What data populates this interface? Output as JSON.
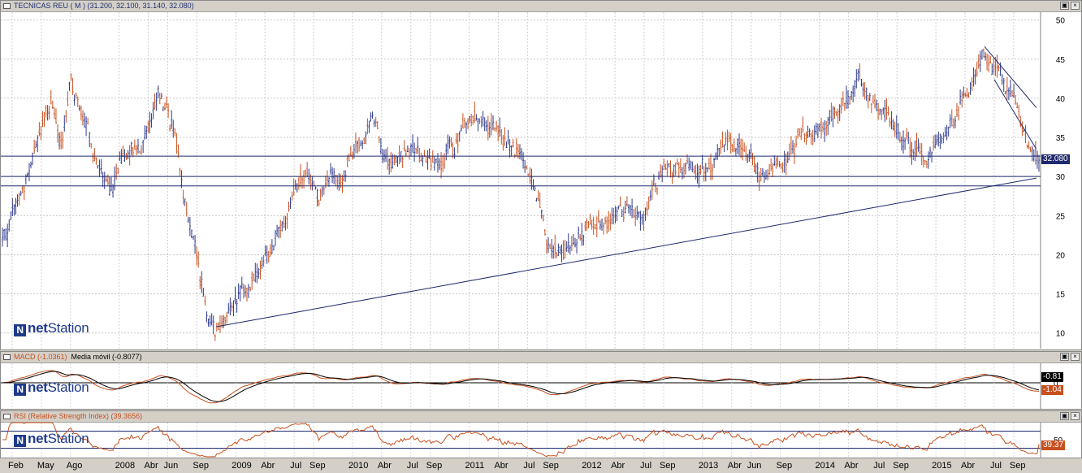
{
  "price_pane": {
    "header": "TECNICAS REU ( M ) (31.200, 32.100, 31.140, 32.080)",
    "last_price_label": "32.080",
    "brand": {
      "prefix": "net",
      "suffix": "Station"
    }
  },
  "macd_pane": {
    "header_macd": "MACD (-1.0361)",
    "header_signal": "Media móvil (-0.8077)",
    "signal_label": "-0.81",
    "macd_label": "-1.04",
    "brand": {
      "prefix": "net",
      "suffix": "Station"
    }
  },
  "rsi_pane": {
    "header": "RSI (Relative Strength Index) (39.3656)",
    "rsi_label": "39.37",
    "brand": {
      "prefix": "net",
      "suffix": "Station"
    }
  },
  "window_buttons": [
    "▣",
    "×"
  ],
  "colors": {
    "up": "#2e3a8c",
    "down": "#c8501e",
    "trendline": "#1f2a6e",
    "macd": "#c8501e",
    "signal": "#000000",
    "rsi": "#c8501e"
  },
  "chart_data": [
    {
      "type": "bar",
      "subtype": "ohlc",
      "title": "TECNICAS REU ( M ) (31.200, 32.100, 31.140, 32.080)",
      "ylim": [
        8,
        51
      ],
      "yticks": [
        10,
        15,
        20,
        25,
        30,
        35,
        40,
        45,
        50
      ],
      "grid": true,
      "x_labels": [
        "Feb",
        "May",
        "Ago",
        "2008",
        "Abr",
        "Jun",
        "Sep",
        "2009",
        "Abr",
        "Jul",
        "Sep",
        "2010",
        "Abr",
        "Jul",
        "Sep",
        "2011",
        "Abr",
        "Jul",
        "Sep",
        "2012",
        "Abr",
        "Jul",
        "Sep",
        "2013",
        "Abr",
        "Jun",
        "Sep",
        "2014",
        "Abr",
        "Jul",
        "Sep",
        "2015",
        "Abr",
        "Jul",
        "Sep"
      ],
      "key_points": [
        {
          "date": "2007-01",
          "close": 22
        },
        {
          "date": "2007-03",
          "close": 28
        },
        {
          "date": "2007-05",
          "close": 36
        },
        {
          "date": "2007-06",
          "close": 39
        },
        {
          "date": "2007-07",
          "close": 33
        },
        {
          "date": "2007-08",
          "close": 43
        },
        {
          "date": "2007-09",
          "close": 38
        },
        {
          "date": "2007-10",
          "close": 34
        },
        {
          "date": "2007-12",
          "close": 28
        },
        {
          "date": "2008-02",
          "close": 33
        },
        {
          "date": "2008-04",
          "close": 36
        },
        {
          "date": "2008-05",
          "close": 41
        },
        {
          "date": "2008-06",
          "close": 38
        },
        {
          "date": "2008-07",
          "close": 34
        },
        {
          "date": "2008-08",
          "close": 26
        },
        {
          "date": "2008-09",
          "close": 20
        },
        {
          "date": "2008-10",
          "close": 13
        },
        {
          "date": "2008-11",
          "close": 11
        },
        {
          "date": "2008-12",
          "close": 13
        },
        {
          "date": "2009-02",
          "close": 15
        },
        {
          "date": "2009-04",
          "close": 20
        },
        {
          "date": "2009-06",
          "close": 25
        },
        {
          "date": "2009-08",
          "close": 30
        },
        {
          "date": "2009-10",
          "close": 28
        },
        {
          "date": "2009-12",
          "close": 30
        },
        {
          "date": "2010-02",
          "close": 35
        },
        {
          "date": "2010-03",
          "close": 37
        },
        {
          "date": "2010-05",
          "close": 31
        },
        {
          "date": "2010-07",
          "close": 33
        },
        {
          "date": "2010-09",
          "close": 31
        },
        {
          "date": "2010-11",
          "close": 33
        },
        {
          "date": "2011-01",
          "close": 37
        },
        {
          "date": "2011-02",
          "close": 38
        },
        {
          "date": "2011-04",
          "close": 35
        },
        {
          "date": "2011-06",
          "close": 33
        },
        {
          "date": "2011-08",
          "close": 27
        },
        {
          "date": "2011-09",
          "close": 21
        },
        {
          "date": "2011-11",
          "close": 20
        },
        {
          "date": "2012-01",
          "close": 23
        },
        {
          "date": "2012-03",
          "close": 24
        },
        {
          "date": "2012-05",
          "close": 26
        },
        {
          "date": "2012-07",
          "close": 25
        },
        {
          "date": "2012-09",
          "close": 31
        },
        {
          "date": "2012-11",
          "close": 32
        },
        {
          "date": "2013-01",
          "close": 31
        },
        {
          "date": "2013-03",
          "close": 33
        },
        {
          "date": "2013-05",
          "close": 34
        },
        {
          "date": "2013-07",
          "close": 31
        },
        {
          "date": "2013-09",
          "close": 32
        },
        {
          "date": "2013-11",
          "close": 35
        },
        {
          "date": "2014-01",
          "close": 36
        },
        {
          "date": "2014-03",
          "close": 39
        },
        {
          "date": "2014-05",
          "close": 42
        },
        {
          "date": "2014-06",
          "close": 41
        },
        {
          "date": "2014-08",
          "close": 37
        },
        {
          "date": "2014-10",
          "close": 35
        },
        {
          "date": "2014-12",
          "close": 33
        },
        {
          "date": "2015-02",
          "close": 36
        },
        {
          "date": "2015-04",
          "close": 41
        },
        {
          "date": "2015-06",
          "close": 45
        },
        {
          "date": "2015-07",
          "close": 44
        },
        {
          "date": "2015-08",
          "close": 41
        },
        {
          "date": "2015-09",
          "close": 39
        },
        {
          "date": "2015-10",
          "close": 36
        },
        {
          "date": "2015-11",
          "close": 32.08
        }
      ],
      "trendlines": [
        {
          "from": {
            "date": "2008-11",
            "value": 10.8
          },
          "to": {
            "date": "2015-11",
            "value": 29.8
          }
        },
        {
          "from": {
            "date": "2015-06",
            "value": 46.6
          },
          "to": {
            "date": "2015-11",
            "value": 38.8
          }
        },
        {
          "from": {
            "date": "2015-07",
            "value": 42.4
          },
          "to": {
            "date": "2015-11",
            "value": 33.5
          }
        }
      ],
      "horizontal_lines": [
        32.6,
        30.0,
        28.8
      ]
    },
    {
      "type": "line",
      "title": "MACD (-1.0361)",
      "series": [
        {
          "name": "MACD (-1.0361)",
          "last": -1.04
        },
        {
          "name": "Media móvil (-0.8077)",
          "last": -0.81
        }
      ],
      "yticks": [
        0
      ]
    },
    {
      "type": "line",
      "title": "RSI (Relative Strength Index) (39.3656)",
      "series": [
        {
          "name": "RSI (Relative Strength Index) (39.3656)",
          "last": 39.37
        }
      ],
      "yticks": [
        50
      ]
    }
  ]
}
